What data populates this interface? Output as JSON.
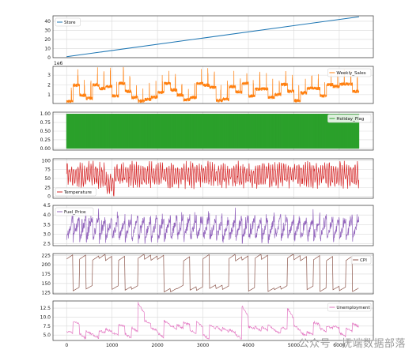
{
  "chart_data": [
    {
      "type": "line",
      "name": "Store",
      "legend": "Store",
      "legend_pos": "upper-left",
      "color": "#1f77b4",
      "ylim": [
        0,
        46
      ],
      "yticks": [
        "0",
        "10",
        "20",
        "30",
        "40"
      ],
      "y_values": [
        0,
        10,
        20,
        30,
        40
      ],
      "grid": true,
      "series": [
        {
          "name": "Store",
          "x": [
            0,
            6435
          ],
          "values": [
            1,
            45
          ]
        }
      ]
    },
    {
      "type": "line",
      "name": "Weekly_Sales",
      "legend": "Weekly_Sales",
      "legend_pos": "upper-right",
      "color": "#ff7f0e",
      "ylim": [
        0.1,
        3.9
      ],
      "yticks": [
        "1",
        "2",
        "3"
      ],
      "y_values": [
        1,
        2,
        3
      ],
      "exponent": "1e6",
      "grid": true,
      "series": [
        {
          "name": "Weekly_Sales",
          "x": [
            0,
            6435
          ],
          "range": [
            0.2,
            3.8
          ],
          "style": "noisy-stores"
        }
      ]
    },
    {
      "type": "line",
      "name": "Holiday_Flag",
      "legend": "Holiday_Flag",
      "legend_pos": "upper-right",
      "color": "#2ca02c",
      "ylim": [
        -0.05,
        1.05
      ],
      "yticks": [
        "0.00",
        "0.25",
        "0.50",
        "0.75",
        "1.00"
      ],
      "y_values": [
        0,
        0.25,
        0.5,
        0.75,
        1.0
      ],
      "grid": true,
      "series": [
        {
          "name": "Holiday_Flag",
          "x": [
            0,
            6435
          ],
          "values": [
            0,
            1
          ],
          "style": "spikes"
        }
      ]
    },
    {
      "type": "line",
      "name": "Temperature",
      "legend": "Temperature",
      "legend_pos": "lower-left",
      "color": "#d62728",
      "ylim": [
        -5,
        105
      ],
      "yticks": [
        "0",
        "25",
        "50",
        "75",
        "100"
      ],
      "y_values": [
        0,
        25,
        50,
        75,
        100
      ],
      "grid": true,
      "series": [
        {
          "name": "Temperature",
          "x": [
            0,
            6435
          ],
          "range": [
            -2,
            100
          ],
          "style": "seasonal"
        }
      ]
    },
    {
      "type": "line",
      "name": "Fuel_Price",
      "legend": "Fuel_Price",
      "legend_pos": "upper-left",
      "color": "#9467bd",
      "ylim": [
        2.4,
        4.5
      ],
      "yticks": [
        "2.5",
        "3.0",
        "3.5",
        "4.0",
        "4.5"
      ],
      "y_values": [
        2.5,
        3.0,
        3.5,
        4.0,
        4.5
      ],
      "grid": true,
      "series": [
        {
          "name": "Fuel_Price",
          "x": [
            0,
            6435
          ],
          "range": [
            2.47,
            4.47
          ],
          "style": "sawtooth"
        }
      ]
    },
    {
      "type": "line",
      "name": "CPI",
      "legend": "CPI",
      "legend_pos": "upper-right",
      "color": "#8c564b",
      "ylim": [
        122,
        230
      ],
      "yticks": [
        "125",
        "150",
        "175",
        "200",
        "225"
      ],
      "y_values": [
        125,
        150,
        175,
        200,
        225
      ],
      "grid": true,
      "series": [
        {
          "name": "CPI",
          "x": [
            0,
            6435
          ],
          "range": [
            126,
            227
          ],
          "style": "steps"
        }
      ]
    },
    {
      "type": "line",
      "name": "Unemployment",
      "legend": "Unemployment",
      "legend_pos": "upper-right",
      "color": "#e377c2",
      "ylim": [
        3.5,
        14.5
      ],
      "yticks": [
        "5.0",
        "7.5",
        "10.0",
        "12.5"
      ],
      "y_values": [
        5.0,
        7.5,
        10.0,
        12.5
      ],
      "grid": true,
      "series": [
        {
          "name": "Unemployment",
          "x": [
            0,
            6435
          ],
          "range": [
            3.9,
            14.3
          ],
          "style": "steps"
        }
      ]
    }
  ],
  "x_axis": {
    "xlim": [
      -300,
      6750
    ],
    "ticks": [
      "0",
      "1000",
      "2000",
      "3000",
      "4000",
      "5000",
      "6000"
    ],
    "values": [
      0,
      1000,
      2000,
      3000,
      4000,
      5000,
      6000
    ]
  },
  "watermark": "公众号 · 抚端数据部落"
}
